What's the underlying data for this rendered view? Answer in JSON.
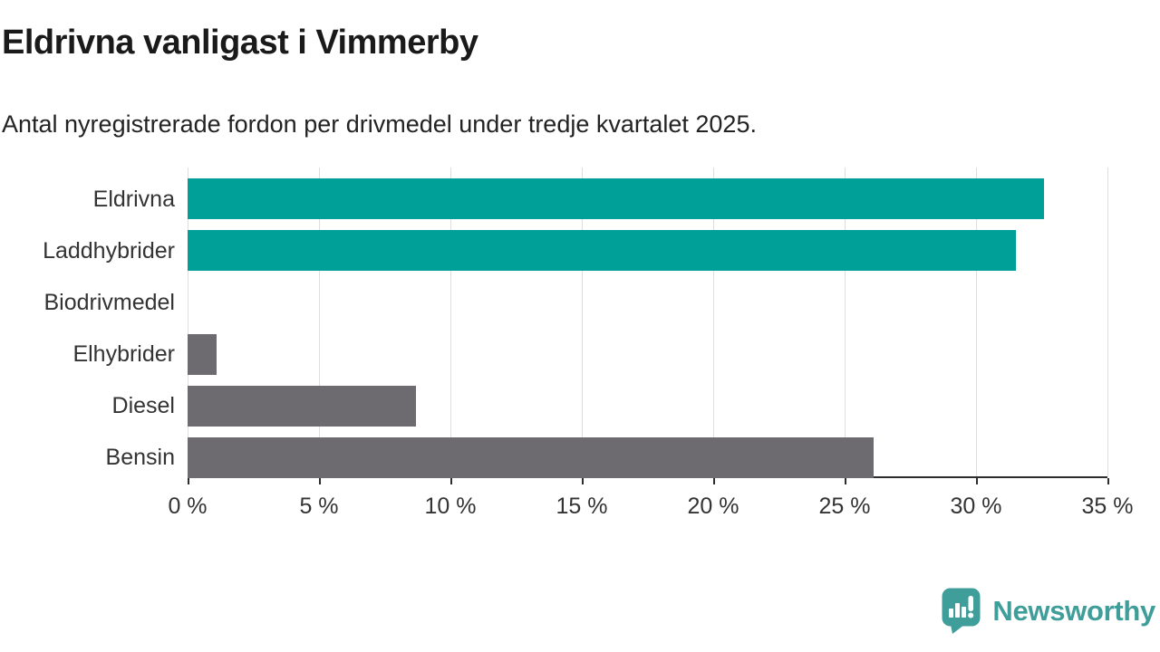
{
  "header": {
    "title": "Eldrivna vanligast i Vimmerby",
    "subtitle": "Antal nyregistrerade fordon per drivmedel under tredje kvartalet 2025."
  },
  "chart_data": {
    "type": "bar",
    "orientation": "horizontal",
    "title": "Eldrivna vanligast i Vimmerby",
    "subtitle": "Antal nyregistrerade fordon per drivmedel under tredje kvartalet 2025.",
    "categories": [
      "Eldrivna",
      "Laddhybrider",
      "Biodrivmedel",
      "Elhybrider",
      "Diesel",
      "Bensin"
    ],
    "values": [
      32.6,
      31.5,
      0,
      1.1,
      8.7,
      26.1
    ],
    "unit": "%",
    "bar_colors": [
      "#00a099",
      "#00a099",
      "#6e6b70",
      "#6e6b70",
      "#6e6b70",
      "#6e6b70"
    ],
    "xlim": [
      0,
      35
    ],
    "x_tick_values": [
      0,
      5,
      10,
      15,
      20,
      25,
      30,
      35
    ],
    "x_tick_labels": [
      "0 %",
      "5 %",
      "10 %",
      "15 %",
      "20 %",
      "25 %",
      "30 %",
      "35 %"
    ],
    "grid": "vertical",
    "legend": "none",
    "colors": {
      "highlight": "#00a099",
      "muted": "#6e6b70",
      "gridline": "#dedede",
      "axis": "#2d2d2d",
      "text": "#333333"
    }
  },
  "footer": {
    "brand": "Newsworthy",
    "logo_color": "#3f9e99"
  }
}
